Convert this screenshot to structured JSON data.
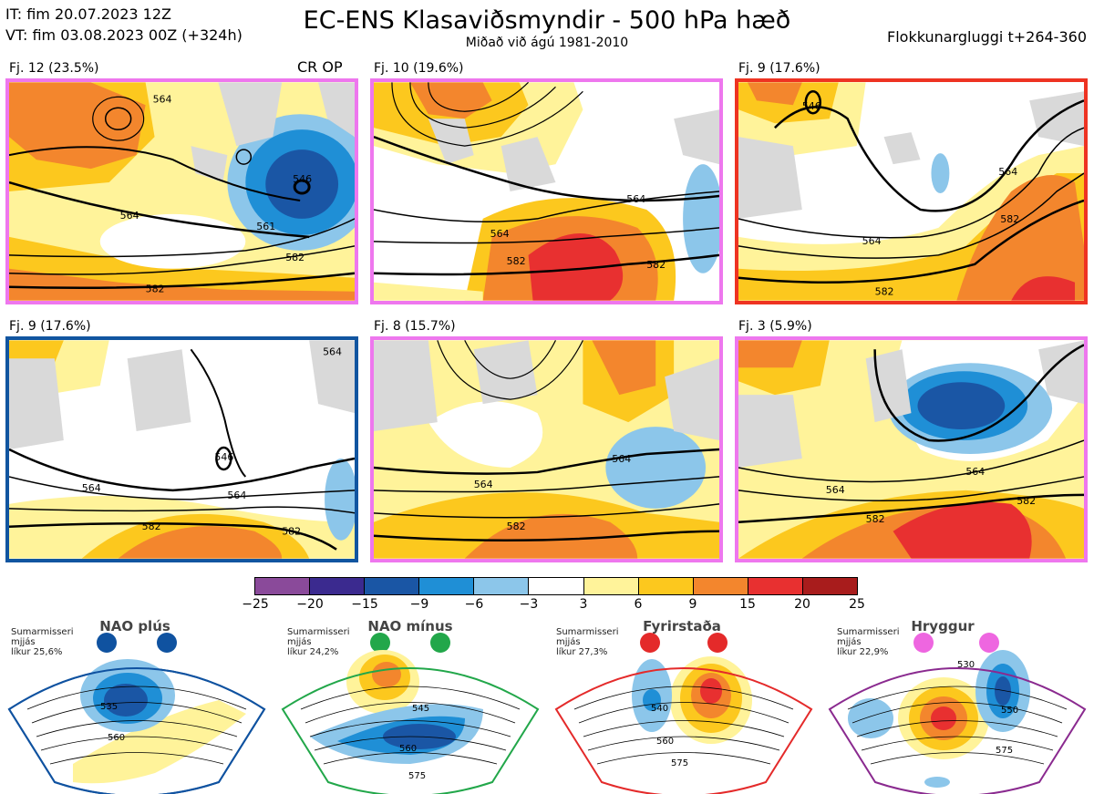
{
  "header": {
    "initial_time": "IT: fim 20.07.2023 12Z",
    "valid_time": "VT: fim 03.08.2023 00Z  (+324h)",
    "title": "EC-ENS Klasaviðsmyndir - 500 hPa hæð",
    "subtitle": "Miðað við ágú 1981-2010",
    "window": "Flokkunargluggi t+264-360"
  },
  "panels": [
    {
      "label": "Fj. 12 (23.5%)",
      "extra": "CR OP",
      "border": "#ee77ee",
      "contours": [
        "564",
        "564",
        "546",
        "561",
        "582",
        "582"
      ]
    },
    {
      "label": "Fj. 10 (19.6%)",
      "border": "#ee77ee",
      "contours": [
        "564",
        "564",
        "582",
        "582"
      ]
    },
    {
      "label": "Fj. 9 (17.6%)",
      "border": "#ee3322",
      "contours": [
        "546",
        "564",
        "564",
        "582",
        "582"
      ]
    },
    {
      "label": "Fj. 9 (17.6%)",
      "border": "#1155a0",
      "contours": [
        "564",
        "564",
        "546",
        "564",
        "582",
        "582"
      ]
    },
    {
      "label": "Fj. 8 (15.7%)",
      "border": "#ee77ee",
      "contours": [
        "564",
        "564",
        "582"
      ]
    },
    {
      "label": "Fj. 3 (5.9%)",
      "border": "#ee77ee",
      "contours": [
        "564",
        "564",
        "582",
        "582"
      ]
    }
  ],
  "colorbar": {
    "colors": [
      "#8a4a9a",
      "#3b2a8f",
      "#1a56a5",
      "#1f8fd6",
      "#8cc6ea",
      "#ffffff",
      "#fff39a",
      "#fcc81e",
      "#f3862d",
      "#e83030",
      "#a81c1c"
    ],
    "labels": [
      "−25",
      "−20",
      "−15",
      "−9",
      "−6",
      "−3",
      "3",
      "6",
      "9",
      "15",
      "20",
      "25"
    ]
  },
  "regimes": [
    {
      "name": "NAO plús",
      "season": "Sumarmisseri",
      "avg": "mjjás",
      "prob": "líkur 25,6%",
      "color": "#0f52a0",
      "contours": [
        "535",
        "560"
      ]
    },
    {
      "name": "NAO mínus",
      "season": "Sumarmisseri",
      "avg": "mjjás",
      "prob": "líkur 24,2%",
      "color": "#22a74a",
      "contours": [
        "545",
        "560",
        "575"
      ]
    },
    {
      "name": "Fyrirstaða",
      "season": "Sumarmisseri",
      "avg": "mjjás",
      "prob": "líkur 27,3%",
      "color": "#e42a2a",
      "contours": [
        "540",
        "560",
        "575"
      ]
    },
    {
      "name": "Hryggur",
      "season": "Sumarmisseri",
      "avg": "mjjás",
      "prob": "líkur 22,9%",
      "color": "#ee66e0",
      "contours": [
        "530",
        "550",
        "575"
      ]
    }
  ]
}
